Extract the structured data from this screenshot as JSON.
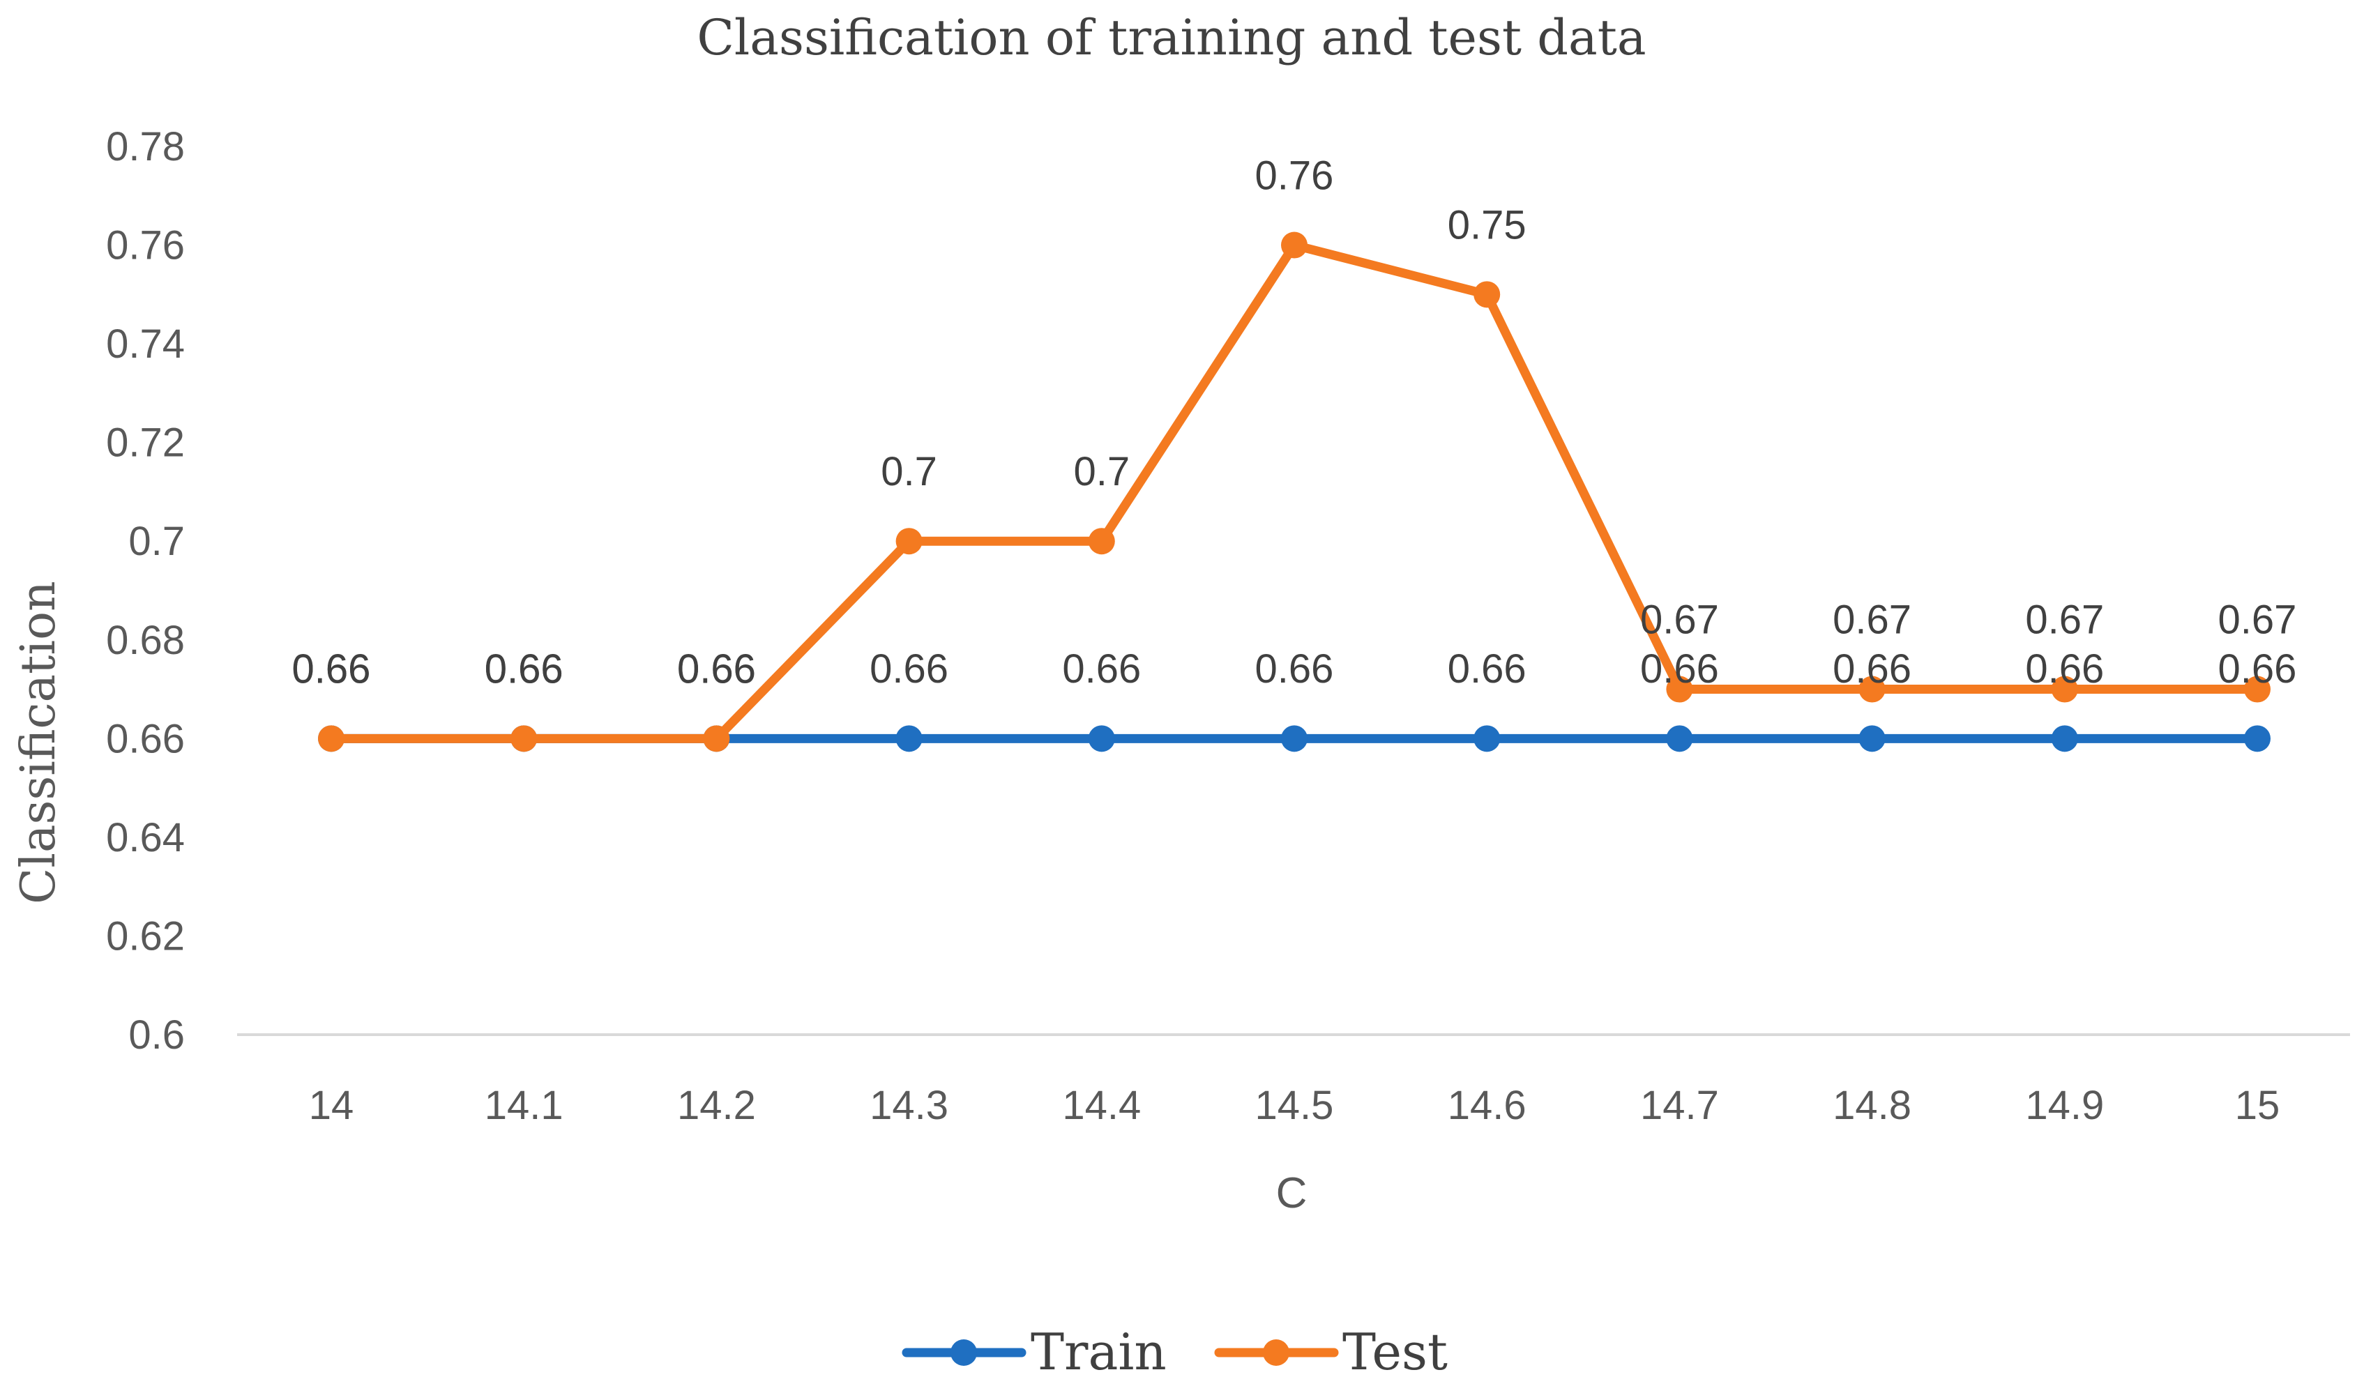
{
  "chart_data": {
    "type": "line",
    "title": "Classification of training and test data",
    "xlabel": "C",
    "ylabel": "Classification",
    "categories": [
      "14",
      "14.1",
      "14.2",
      "14.3",
      "14.4",
      "14.5",
      "14.6",
      "14.7",
      "14.8",
      "14.9",
      "15"
    ],
    "ylim": [
      0.6,
      0.78
    ],
    "yticks": [
      "0.6",
      "0.62",
      "0.64",
      "0.66",
      "0.68",
      "0.7",
      "0.72",
      "0.74",
      "0.76",
      "0.78"
    ],
    "legend_position": "bottom",
    "series": [
      {
        "name": "Train",
        "color": "#1f6fc1",
        "values": [
          0.66,
          0.66,
          0.66,
          0.66,
          0.66,
          0.66,
          0.66,
          0.66,
          0.66,
          0.66,
          0.66
        ],
        "labels": [
          "0.66",
          "0.66",
          "0.66",
          "0.66",
          "0.66",
          "0.66",
          "0.66",
          "0.66",
          "0.66",
          "0.66",
          "0.66"
        ]
      },
      {
        "name": "Test",
        "color": "#f47a20",
        "values": [
          0.66,
          0.66,
          0.66,
          0.7,
          0.7,
          0.76,
          0.75,
          0.67,
          0.67,
          0.67,
          0.67
        ],
        "labels": [
          "0.66",
          "0.66",
          "0.66",
          "0.7",
          "0.7",
          "0.76",
          "0.75",
          "0.67",
          "0.67",
          "0.67",
          "0.67"
        ]
      }
    ]
  }
}
